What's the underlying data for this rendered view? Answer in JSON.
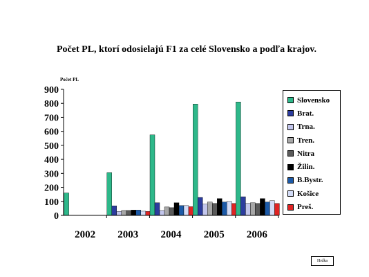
{
  "chart_data": {
    "type": "bar",
    "title": "Počet PL, ktorí odosielajú F1 za celé Slovensko a podľa krajov.",
    "ylabel": "Počet PL",
    "xlabel": "",
    "categories": [
      "2002",
      "2003",
      "2004",
      "2005",
      "2006"
    ],
    "ylim": [
      0,
      900
    ],
    "yticks": [
      0,
      100,
      200,
      300,
      400,
      500,
      600,
      700,
      800,
      900
    ],
    "grid": false,
    "legend_position": "right",
    "series": [
      {
        "name": "Slovensko",
        "color": "#2eb88a",
        "values": [
          160,
          305,
          575,
          795,
          810
        ]
      },
      {
        "name": "Brat.",
        "color": "#2c3c9e",
        "values": [
          0,
          68,
          90,
          128,
          133
        ]
      },
      {
        "name": "Trna.",
        "color": "#c3c6ec",
        "values": [
          0,
          28,
          35,
          80,
          85
        ]
      },
      {
        "name": "Tren.",
        "color": "#a7a7a7",
        "values": [
          0,
          35,
          60,
          95,
          90
        ]
      },
      {
        "name": "Nitra",
        "color": "#5a5a5a",
        "values": [
          0,
          35,
          55,
          85,
          85
        ]
      },
      {
        "name": "Žilin.",
        "color": "#000000",
        "values": [
          0,
          38,
          90,
          120,
          120
        ]
      },
      {
        "name": "B.Bystr.",
        "color": "#1c5aa8",
        "values": [
          0,
          38,
          70,
          95,
          95
        ]
      },
      {
        "name": "Košice",
        "color": "#d3dcf7",
        "values": [
          0,
          30,
          70,
          100,
          105
        ]
      },
      {
        "name": "Preš.",
        "color": "#e02424",
        "values": [
          0,
          28,
          62,
          85,
          85
        ]
      }
    ]
  },
  "note": "Hrdka"
}
